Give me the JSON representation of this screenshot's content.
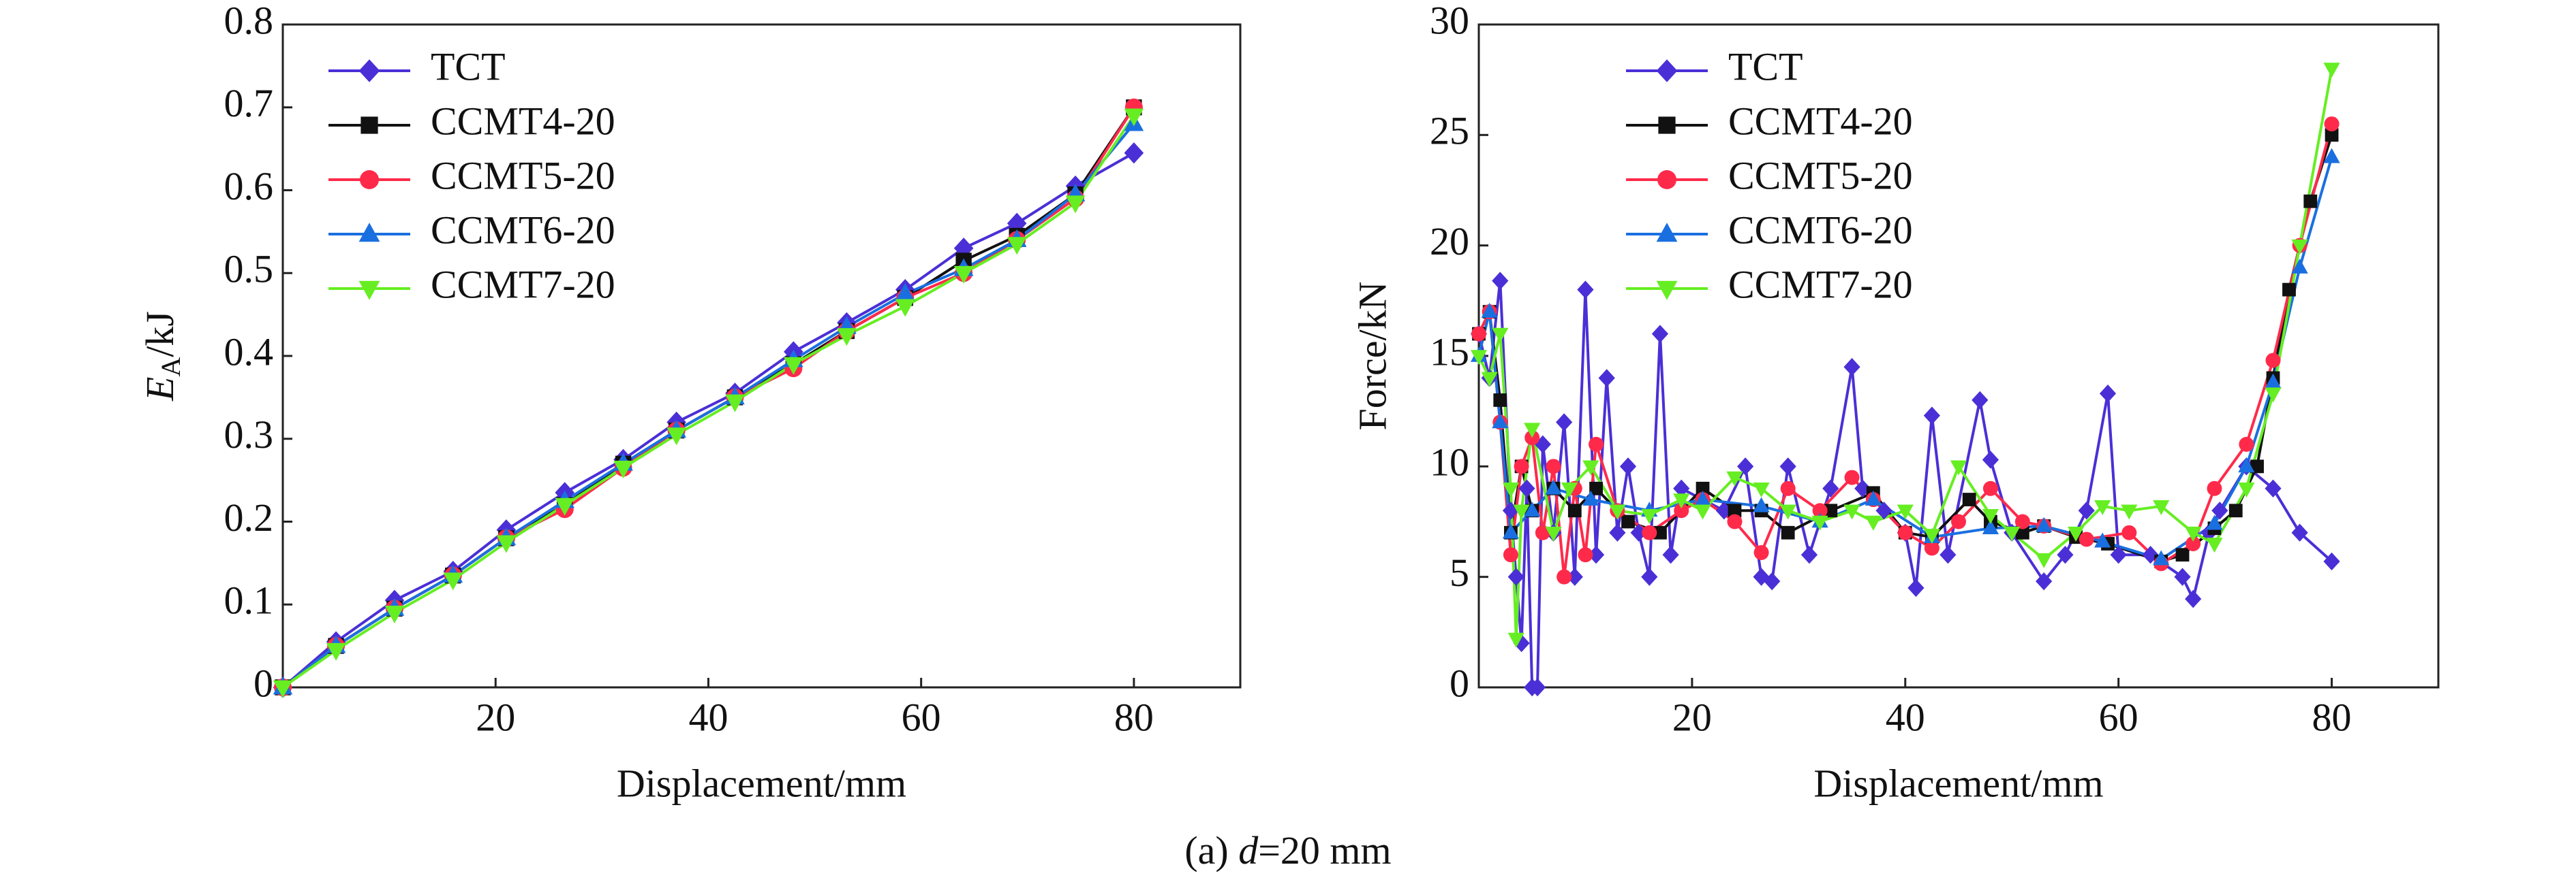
{
  "chart_data": [
    {
      "type": "line",
      "xlabel": "Displacement/mm",
      "ylabel_parts": [
        "E",
        "A",
        "/kJ"
      ],
      "xlim": [
        0,
        90
      ],
      "xticks": [
        20,
        40,
        60,
        80
      ],
      "ylim": [
        0,
        0.8
      ],
      "yticks": [
        0,
        0.1,
        0.2,
        0.3,
        0.4,
        0.5,
        0.6,
        0.7,
        0.8
      ],
      "legend": "upper left",
      "series": [
        {
          "name": "TCT",
          "color": "#4b2fd6",
          "marker": "diamond",
          "x": [
            0,
            5,
            10.5,
            16,
            21,
            26.5,
            32,
            37,
            42.5,
            48,
            53,
            58.5,
            64,
            69,
            74.5,
            80
          ],
          "values": [
            0,
            0.055,
            0.105,
            0.14,
            0.19,
            0.235,
            0.275,
            0.32,
            0.355,
            0.405,
            0.44,
            0.48,
            0.53,
            0.56,
            0.605,
            0.645
          ]
        },
        {
          "name": "CCMT4-20",
          "color": "#111111",
          "marker": "square",
          "x": [
            0,
            5,
            10.5,
            16,
            21,
            26.5,
            32,
            37,
            42.5,
            48,
            53,
            58.5,
            64,
            69,
            74.5,
            80
          ],
          "values": [
            0,
            0.05,
            0.095,
            0.135,
            0.18,
            0.22,
            0.27,
            0.31,
            0.35,
            0.39,
            0.43,
            0.47,
            0.515,
            0.545,
            0.595,
            0.7
          ]
        },
        {
          "name": "CCMT5-20",
          "color": "#ff2a4a",
          "marker": "circle",
          "x": [
            0,
            5,
            10.5,
            16,
            21,
            26.5,
            32,
            37,
            42.5,
            48,
            53,
            58.5,
            64,
            69,
            74.5,
            80
          ],
          "values": [
            0,
            0.05,
            0.095,
            0.135,
            0.18,
            0.215,
            0.265,
            0.31,
            0.35,
            0.385,
            0.43,
            0.47,
            0.5,
            0.54,
            0.59,
            0.7
          ]
        },
        {
          "name": "CCMT6-20",
          "color": "#1a6fe0",
          "marker": "triangle-up",
          "x": [
            0,
            5,
            10.5,
            16,
            21,
            26.5,
            32,
            37,
            42.5,
            48,
            53,
            58.5,
            64,
            69,
            74.5,
            80
          ],
          "values": [
            0,
            0.05,
            0.095,
            0.135,
            0.18,
            0.225,
            0.27,
            0.31,
            0.35,
            0.395,
            0.435,
            0.475,
            0.505,
            0.54,
            0.595,
            0.68
          ]
        },
        {
          "name": "CCMT7-20",
          "color": "#66ee22",
          "marker": "triangle-down",
          "x": [
            0,
            5,
            10.5,
            16,
            21,
            26.5,
            32,
            37,
            42.5,
            48,
            53,
            58.5,
            64,
            69,
            74.5,
            80
          ],
          "values": [
            0,
            0.045,
            0.09,
            0.13,
            0.175,
            0.22,
            0.265,
            0.305,
            0.345,
            0.39,
            0.425,
            0.46,
            0.5,
            0.535,
            0.585,
            0.69
          ]
        }
      ]
    },
    {
      "type": "line",
      "xlabel": "Displacement/mm",
      "ylabel": "Force/kN",
      "xlim": [
        0,
        90
      ],
      "xticks": [
        20,
        40,
        60,
        80
      ],
      "ylim": [
        0,
        30
      ],
      "yticks": [
        0,
        5,
        10,
        15,
        20,
        25,
        30
      ],
      "legend": "upper center",
      "series": [
        {
          "name": "TCT",
          "color": "#4b2fd6",
          "marker": "diamond",
          "x": [
            0,
            1,
            2,
            3,
            3.5,
            4,
            4.5,
            5,
            5.5,
            6,
            7,
            8,
            9,
            10,
            11,
            12,
            13,
            14,
            15,
            16,
            17,
            18,
            19,
            21,
            23,
            25,
            26.5,
            27.5,
            29,
            31,
            33,
            35,
            36,
            38,
            40,
            41,
            42.5,
            44,
            47,
            48,
            50,
            53,
            55,
            57,
            59,
            60,
            63,
            66,
            67,
            68.5,
            69.5,
            72,
            74.5,
            77,
            80
          ],
          "values": [
            16,
            14,
            18.4,
            8,
            5,
            2,
            9,
            0,
            0,
            11,
            7,
            12,
            5,
            18,
            6,
            14,
            7,
            10,
            7,
            5,
            16,
            6,
            9,
            8.5,
            8,
            10,
            5,
            4.8,
            10,
            6,
            9,
            14.5,
            9,
            8,
            7,
            4.5,
            12.3,
            6,
            13,
            10.3,
            7,
            4.8,
            6,
            8,
            13.3,
            6,
            6,
            5,
            4,
            7,
            8,
            10,
            9,
            7,
            5.7
          ]
        },
        {
          "name": "CCMT4-20",
          "color": "#111111",
          "marker": "square",
          "x": [
            0,
            1,
            2,
            3,
            4,
            5,
            7,
            9,
            11,
            14,
            17,
            21,
            24,
            26.5,
            29,
            33,
            37,
            40,
            42.5,
            46,
            48,
            51,
            53,
            56,
            59,
            64,
            66,
            69,
            71,
            73,
            74.5,
            76,
            78,
            80
          ],
          "values": [
            16,
            17,
            13,
            7,
            10,
            8,
            9,
            8,
            9,
            7.5,
            7,
            9,
            8,
            8,
            7,
            8,
            8.8,
            7,
            6.8,
            8.5,
            7.5,
            7,
            7.3,
            6.8,
            6.5,
            5.7,
            6,
            7.2,
            8,
            10,
            14,
            18,
            22,
            25
          ]
        },
        {
          "name": "CCMT5-20",
          "color": "#ff2a4a",
          "marker": "circle",
          "x": [
            0,
            1,
            2,
            3,
            4,
            5,
            6,
            7,
            8,
            9,
            10,
            11,
            13,
            16,
            19,
            21,
            24,
            26.5,
            29,
            32,
            35,
            37,
            40,
            42.5,
            45,
            48,
            51,
            53,
            57,
            61,
            64,
            67,
            69,
            72,
            74.5,
            77,
            80
          ],
          "values": [
            16,
            17,
            12,
            6,
            10,
            11.3,
            7,
            10,
            5,
            9,
            6,
            11,
            8,
            7,
            8,
            8.5,
            7.5,
            6.1,
            9,
            8,
            9.5,
            8.5,
            7,
            6.3,
            7.5,
            9,
            7.5,
            7.3,
            6.7,
            7,
            5.6,
            6.5,
            9,
            11,
            14.8,
            20,
            25.5
          ]
        },
        {
          "name": "CCMT6-20",
          "color": "#1a6fe0",
          "marker": "triangle-up",
          "x": [
            0,
            1,
            2,
            3,
            5,
            7,
            10.5,
            16,
            21,
            26.5,
            32,
            37,
            42.5,
            48,
            53,
            58.5,
            64,
            69,
            72,
            74.5,
            77,
            80
          ],
          "values": [
            15,
            17,
            12,
            7,
            8,
            9,
            8.5,
            8,
            8.5,
            8.2,
            7.5,
            8.5,
            6.8,
            7.2,
            7.3,
            6.6,
            5.8,
            7.4,
            10,
            13.8,
            19,
            24
          ]
        },
        {
          "name": "CCMT7-20",
          "color": "#66ee22",
          "marker": "triangle-down",
          "x": [
            0,
            1,
            2,
            3,
            3.5,
            4,
            5,
            7,
            8.5,
            10.5,
            13,
            16,
            19,
            21,
            24,
            26.5,
            29,
            32,
            35,
            37,
            40,
            42.5,
            45,
            48,
            50,
            53,
            56,
            58.5,
            61,
            64,
            67,
            69,
            72,
            74.5,
            77,
            80
          ],
          "values": [
            15,
            14,
            16,
            9,
            2.2,
            8,
            11.7,
            7,
            9,
            10,
            8,
            7.8,
            8.5,
            8,
            9.5,
            9,
            8,
            7.5,
            8,
            7.5,
            8,
            6.9,
            10,
            7.8,
            7,
            5.8,
            7,
            8.2,
            8,
            8.2,
            7,
            6.5,
            9,
            13.3,
            20,
            28
          ]
        }
      ]
    }
  ],
  "caption_parts": [
    "(a) ",
    "d",
    "=20 mm"
  ]
}
